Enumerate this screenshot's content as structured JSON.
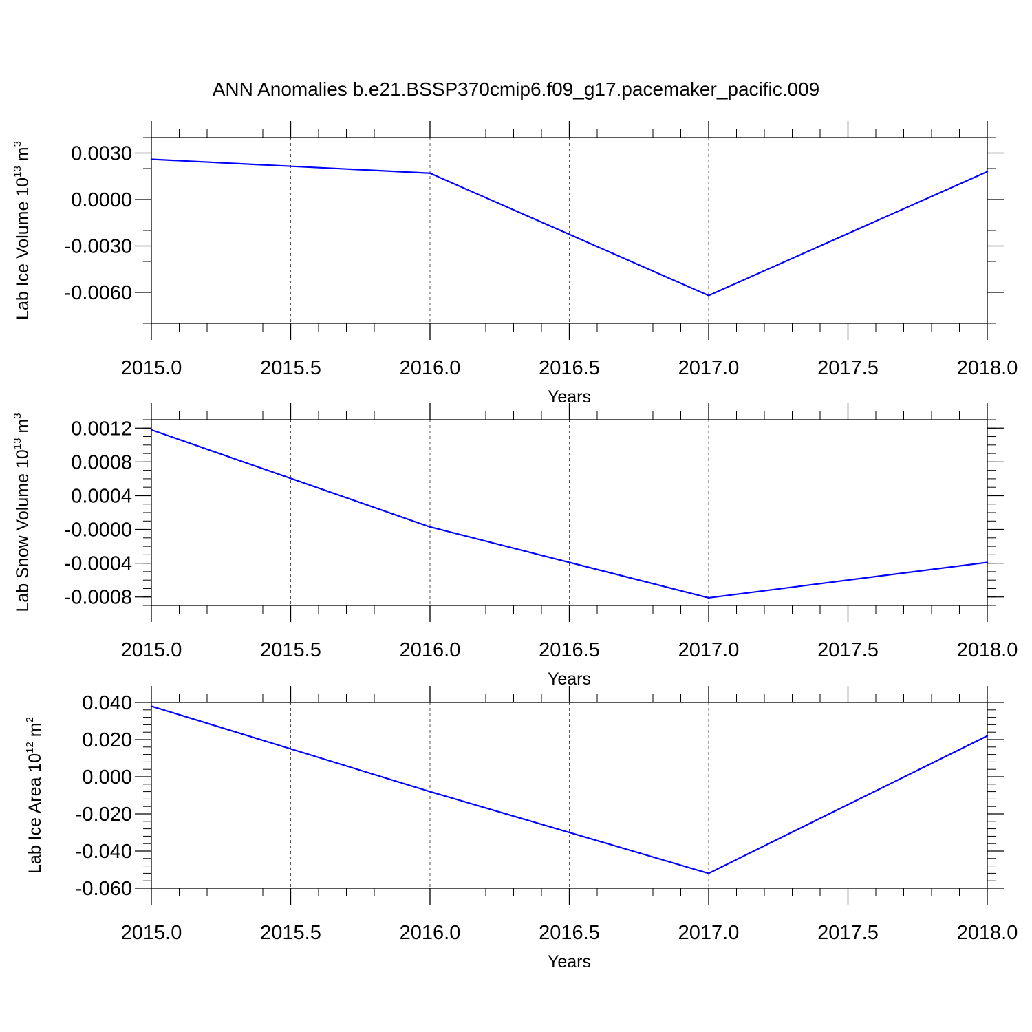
{
  "figure_title": "ANN Anomalies b.e21.BSSP370cmip6.f09_g17.pacemaker_pacific.009",
  "chart_data": [
    {
      "type": "line",
      "ylabel": {
        "text": "Lab Ice Volume 10",
        "exp": "13",
        "unit": " m",
        "unit_exp": "3"
      },
      "xlabel": "Years",
      "xlim": [
        2015.0,
        2018.0
      ],
      "ylim": [
        -0.008,
        0.004
      ],
      "x_ticks": [
        "2015.0",
        "2015.5",
        "2016.0",
        "2016.5",
        "2017.0",
        "2017.5",
        "2018.0"
      ],
      "y_ticks": [
        0.003,
        0.0,
        -0.003,
        -0.006
      ],
      "y_tick_labels": [
        "0.0030",
        "0.0000",
        "-0.0030",
        "-0.0060"
      ],
      "y_minor_step": 0.001,
      "grid": "vertical-dashed",
      "color": "#0000ff",
      "x": [
        2015,
        2016,
        2017,
        2018
      ],
      "y": [
        0.0026,
        0.0017,
        -0.0062,
        0.0018
      ]
    },
    {
      "type": "line",
      "ylabel": {
        "text": "Lab Snow Volume 10",
        "exp": "13",
        "unit": " m",
        "unit_exp": "3"
      },
      "xlabel": "Years",
      "xlim": [
        2015.0,
        2018.0
      ],
      "ylim": [
        -0.0009,
        0.0013
      ],
      "x_ticks": [
        "2015.0",
        "2015.5",
        "2016.0",
        "2016.5",
        "2017.0",
        "2017.5",
        "2018.0"
      ],
      "y_ticks": [
        0.0012,
        0.0008,
        0.0004,
        0.0,
        -0.0004,
        -0.0008
      ],
      "y_tick_labels": [
        "0.0012",
        "0.0008",
        "0.0004",
        "-0.0000",
        "-0.0004",
        "-0.0008"
      ],
      "y_minor_step": 0.0001,
      "grid": "vertical-dashed",
      "color": "#0000ff",
      "x": [
        2015,
        2016,
        2017,
        2018
      ],
      "y": [
        0.00118,
        3e-05,
        -0.00081,
        -0.00039
      ]
    },
    {
      "type": "line",
      "ylabel": {
        "text": "Lab Ice Area 10",
        "exp": "12",
        "unit": " m",
        "unit_exp": "2"
      },
      "xlabel": "Years",
      "xlim": [
        2015.0,
        2018.0
      ],
      "ylim": [
        -0.06,
        0.04
      ],
      "x_ticks": [
        "2015.0",
        "2015.5",
        "2016.0",
        "2016.5",
        "2017.0",
        "2017.5",
        "2018.0"
      ],
      "y_ticks": [
        0.04,
        0.02,
        0.0,
        -0.02,
        -0.04,
        -0.06
      ],
      "y_tick_labels": [
        "0.040",
        "0.020",
        "0.000",
        "-0.020",
        "-0.040",
        "-0.060"
      ],
      "y_minor_step": 0.004,
      "grid": "vertical-dashed",
      "color": "#0000ff",
      "x": [
        2015,
        2016,
        2017,
        2018
      ],
      "y": [
        0.038,
        -0.008,
        -0.052,
        0.022
      ]
    }
  ]
}
